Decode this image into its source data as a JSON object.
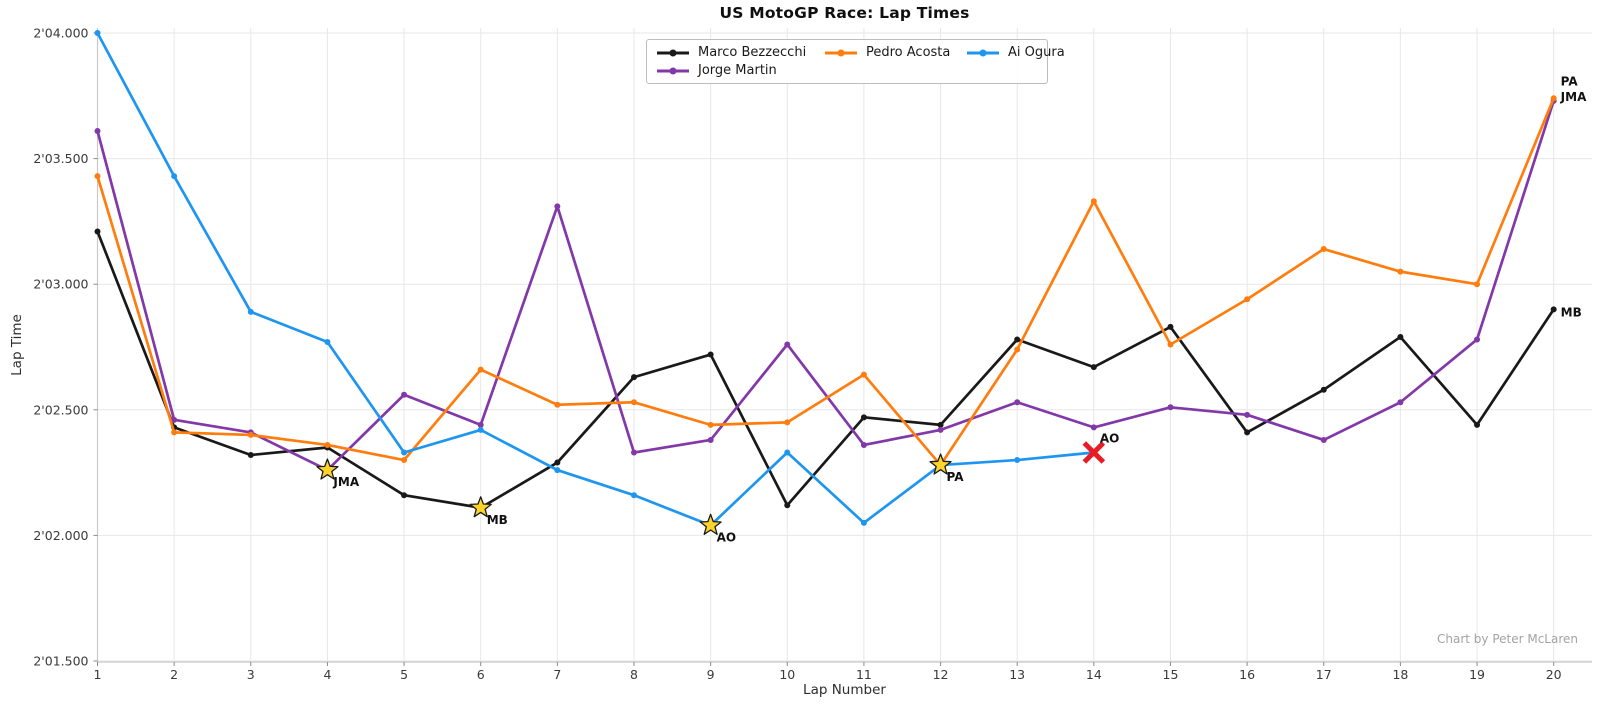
{
  "title": "US MotoGP Race: Lap Times",
  "watermark": "Chart by Peter McLaren",
  "axes": {
    "x_label": "Lap Number",
    "y_label": "Lap Time",
    "x_ticks": [
      1,
      2,
      3,
      4,
      5,
      6,
      7,
      8,
      9,
      10,
      11,
      12,
      13,
      14,
      15,
      16,
      17,
      18,
      19,
      20
    ],
    "y_ticks": [
      {
        "value": 124.0,
        "label": "2'04.000"
      },
      {
        "value": 123.5,
        "label": "2'03.500"
      },
      {
        "value": 123.0,
        "label": "2'03.000"
      },
      {
        "value": 122.5,
        "label": "2'02.500"
      },
      {
        "value": 122.0,
        "label": "2'02.000"
      },
      {
        "value": 121.5,
        "label": "2'01.500"
      }
    ]
  },
  "legend": {
    "order": [
      "Marco Bezzecchi",
      "Pedro Acosta",
      "Ai Ogura",
      "Jorge Martin"
    ]
  },
  "chart_data": {
    "type": "line",
    "title": "US MotoGP Race: Lap Times",
    "xlabel": "Lap Number",
    "ylabel": "Lap Time",
    "x": [
      1,
      2,
      3,
      4,
      5,
      6,
      7,
      8,
      9,
      10,
      11,
      12,
      13,
      14,
      15,
      16,
      17,
      18,
      19,
      20
    ],
    "xlim": [
      1,
      20.5
    ],
    "ylim": [
      121.5,
      124.0
    ],
    "grid": true,
    "legend_position": "upper center",
    "series": [
      {
        "name": "Marco Bezzecchi",
        "abbr": "MB",
        "color": "#191919",
        "values": [
          123.21,
          122.43,
          122.32,
          122.35,
          122.16,
          122.11,
          122.29,
          122.63,
          122.72,
          122.12,
          122.47,
          122.44,
          122.78,
          122.67,
          122.83,
          122.41,
          122.58,
          122.79,
          122.44,
          122.9
        ],
        "end_label": "MB",
        "end_label_dy": 4
      },
      {
        "name": "Jorge Martin",
        "abbr": "JMA",
        "color": "#8238a8",
        "values": [
          123.61,
          122.46,
          122.41,
          122.26,
          122.56,
          122.44,
          123.31,
          122.33,
          122.38,
          122.76,
          122.36,
          122.42,
          122.53,
          122.43,
          122.51,
          122.48,
          122.38,
          122.53,
          122.78,
          123.73
        ],
        "end_label": "JMA",
        "end_label_dy": -3
      },
      {
        "name": "Pedro Acosta",
        "abbr": "PA",
        "color": "#ff7d0e",
        "values": [
          123.43,
          122.41,
          122.4,
          122.36,
          122.3,
          122.66,
          122.52,
          122.53,
          122.44,
          122.45,
          122.64,
          122.28,
          122.74,
          123.33,
          122.76,
          122.94,
          123.14,
          123.05,
          123.0,
          123.74
        ],
        "end_label": "PA",
        "end_label_dy": -16
      },
      {
        "name": "Ai Ogura",
        "abbr": "AO",
        "color": "#1e96f0",
        "values": [
          124.0,
          123.43,
          122.89,
          122.77,
          122.33,
          122.42,
          122.26,
          122.16,
          122.04,
          122.33,
          122.05,
          122.28,
          122.3,
          122.33
        ],
        "end_label": null,
        "end_label_dy": 0
      }
    ],
    "annotations": [
      {
        "type": "star",
        "label": "JMA",
        "series": "Jorge Martin",
        "lap": 4,
        "value": 122.26
      },
      {
        "type": "star",
        "label": "MB",
        "series": "Marco Bezzecchi",
        "lap": 6,
        "value": 122.11
      },
      {
        "type": "star",
        "label": "AO",
        "series": "Ai Ogura",
        "lap": 9,
        "value": 122.04
      },
      {
        "type": "star",
        "label": "PA",
        "series": "Pedro Acosta",
        "lap": 12,
        "value": 122.28
      },
      {
        "type": "cross",
        "label": "AO",
        "series": "Ai Ogura",
        "lap": 14,
        "value": 122.33
      }
    ],
    "star_color": "#ffd42a",
    "cross_color": "#e81c24"
  }
}
